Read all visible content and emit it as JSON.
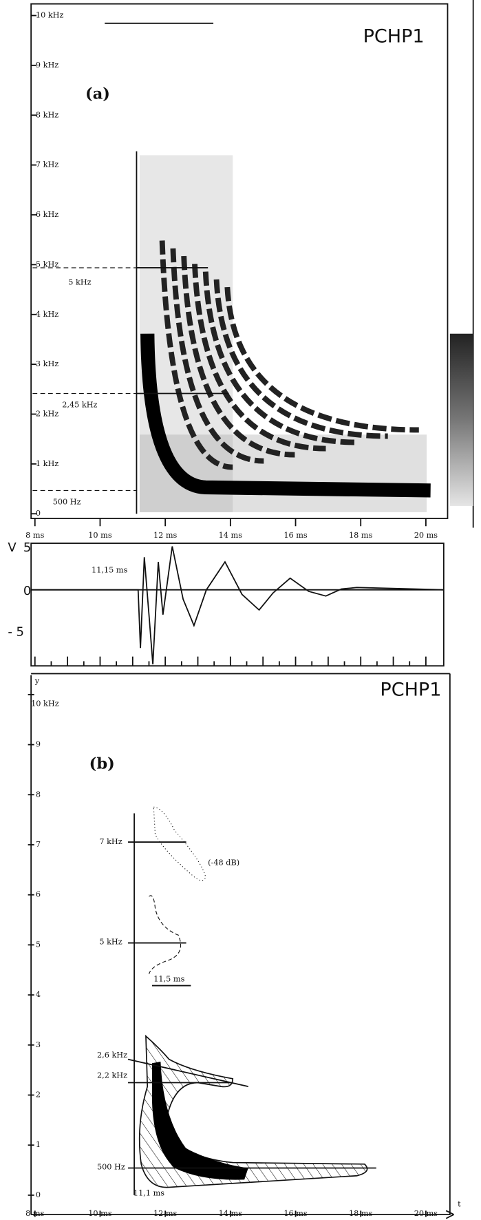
{
  "panel_a": {
    "title": "PCHP1",
    "label": "(a)",
    "y_labels": [
      "10 kHz",
      "9 kHz",
      "8 kHz",
      "7 kHz",
      "6 kHz",
      "5 kHz",
      "4 kHz",
      "3 kHz",
      "2 kHz",
      "1 kHz",
      "0"
    ],
    "x_labels": [
      "8 ms",
      "10 ms",
      "12 ms",
      "14 ms",
      "16 ms",
      "18 ms",
      "20 ms"
    ],
    "annotations": [
      "5 kHz",
      "2,45 kHz",
      "500 Hz"
    ]
  },
  "waveform": {
    "y_labels": [
      "V",
      "5",
      "0",
      "- 5"
    ],
    "annotation": "11,15 ms"
  },
  "panel_b": {
    "title": "PCHP1",
    "label": "(b)",
    "y_axis_label": "y",
    "x_axis_label": "t",
    "y_labels": [
      "10 kHz",
      "9",
      "8",
      "7",
      "6",
      "5",
      "4",
      "3",
      "2",
      "1",
      "0"
    ],
    "x_labels": [
      "8 ms",
      "10 ms",
      "12 ms",
      "14 ms",
      "16 ms",
      "18 ms",
      "20 ms"
    ],
    "annotations": [
      "7 kHz",
      "(-48 dB)",
      "5 kHz",
      "11,5 ms",
      "2,6 kHz",
      "2,2 kHz",
      "500 Hz",
      "11,1 ms"
    ]
  }
}
